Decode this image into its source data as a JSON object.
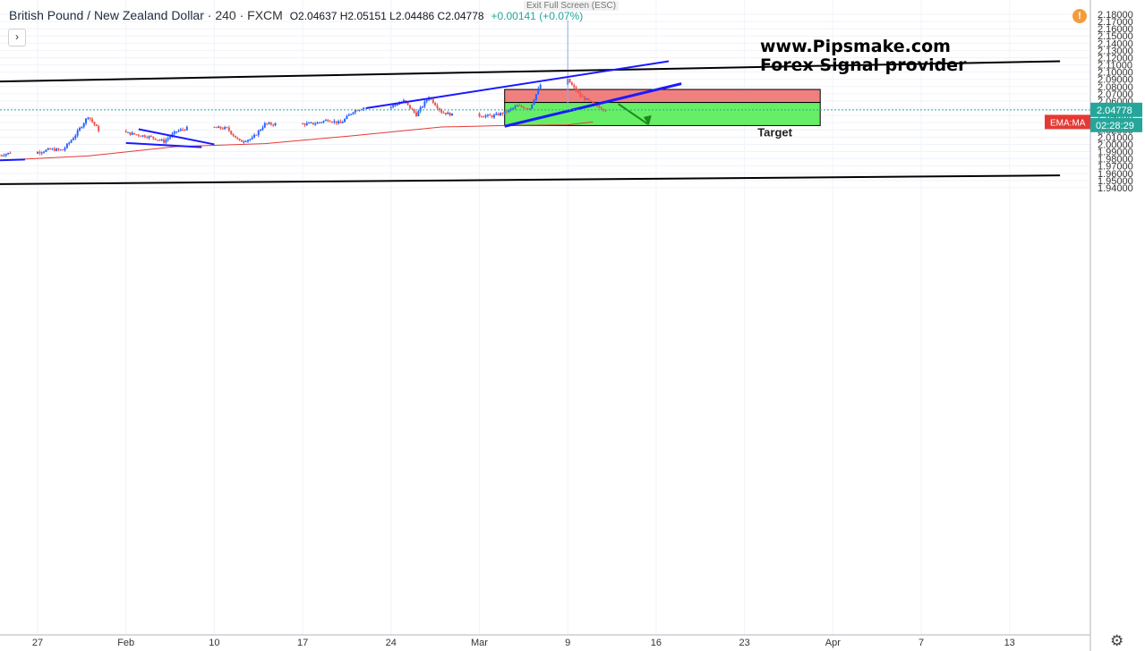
{
  "header": {
    "symbol": "British Pound / New Zealand Dollar",
    "separator": "·",
    "interval": "240",
    "exchange": "FXCM",
    "ohlc": "O2.04637 H2.05151 L2.04486 C2.04778",
    "change": "+0.00141 (+0.07%)"
  },
  "overlay": {
    "exit_fullscreen": "Exit Full Screen (ESC)",
    "expand_symbol": "›",
    "alert_symbol": "!"
  },
  "watermark": {
    "line1": "www.Pipsmake.com",
    "line2": "Forex Signal provider"
  },
  "price_axis": {
    "last_price": "2.04778",
    "countdown": "02:28:29",
    "indicator_label": "EMA:MA"
  },
  "annotations": {
    "target_label": "Target"
  },
  "icons": {
    "settings": "gear-icon",
    "alert": "alert-icon",
    "expand": "chevron-right-icon"
  },
  "colors": {
    "up_candle": "#2962ff",
    "down_candle": "#ef5350",
    "ema": "#e53935",
    "stop_zone": "#f08080",
    "target_zone": "#66ee66",
    "channel": "#000000",
    "trendline": "#1a1aff"
  },
  "chart_data": {
    "type": "candlestick",
    "title": "British Pound / New Zealand Dollar · 240 · FXCM",
    "yaxis": {
      "ylim": [
        1.935,
        2.182
      ],
      "ticks": [
        "1.94000",
        "1.95000",
        "1.96000",
        "1.97000",
        "1.98000",
        "1.99000",
        "2.00000",
        "2.01000",
        "2.02000",
        "2.03000",
        "2.04000",
        "2.05000",
        "2.06000",
        "2.07000",
        "2.08000",
        "2.09000",
        "2.10000",
        "2.11000",
        "2.12000",
        "2.13000",
        "2.14000",
        "2.15000",
        "2.16000",
        "2.17000",
        "2.18000"
      ]
    },
    "xaxis": {
      "ticks": [
        "27",
        "Feb",
        "10",
        "17",
        "24",
        "Mar",
        "9",
        "16",
        "23",
        "Apr",
        "7",
        "13"
      ],
      "tick_dates": [
        "2020-01-27",
        "2020-02-03",
        "2020-02-10",
        "2020-02-17",
        "2020-02-24",
        "2020-03-02",
        "2020-03-09",
        "2020-03-16",
        "2020-03-23",
        "2020-03-30",
        "2020-04-06",
        "2020-04-13"
      ]
    },
    "grid": true,
    "last_price": 2.04778,
    "series": [
      {
        "name": "EMA:MA",
        "type": "line",
        "points": [
          [
            "2020-01-24",
            1.978
          ],
          [
            "2020-01-31",
            1.984
          ],
          [
            "2020-02-07",
            1.997
          ],
          [
            "2020-02-14",
            2.001
          ],
          [
            "2020-02-21",
            2.012
          ],
          [
            "2020-02-28",
            2.024
          ],
          [
            "2020-03-04",
            2.026
          ],
          [
            "2020-03-09",
            2.027
          ],
          [
            "2020-03-11",
            2.031
          ]
        ]
      }
    ],
    "candles_daily_approx": [
      [
        "2020-01-24",
        1.985
      ],
      [
        "2020-01-27",
        1.989
      ],
      [
        "2020-01-28",
        1.993
      ],
      [
        "2020-01-29",
        1.992
      ],
      [
        "2020-01-30",
        2.013
      ],
      [
        "2020-01-31",
        2.039
      ],
      [
        "2020-02-03",
        2.016
      ],
      [
        "2020-02-04",
        2.013
      ],
      [
        "2020-02-05",
        2.01
      ],
      [
        "2020-02-06",
        2.004
      ],
      [
        "2020-02-07",
        2.018
      ],
      [
        "2020-02-10",
        2.023
      ],
      [
        "2020-02-11",
        2.022
      ],
      [
        "2020-02-12",
        2.004
      ],
      [
        "2020-02-13",
        2.008
      ],
      [
        "2020-02-14",
        2.028
      ],
      [
        "2020-02-17",
        2.028
      ],
      [
        "2020-02-18",
        2.029
      ],
      [
        "2020-02-19",
        2.034
      ],
      [
        "2020-02-20",
        2.029
      ],
      [
        "2020-02-21",
        2.046
      ],
      [
        "2020-02-24",
        2.052
      ],
      [
        "2020-02-25",
        2.06
      ],
      [
        "2020-02-26",
        2.041
      ],
      [
        "2020-02-27",
        2.066
      ],
      [
        "2020-02-28",
        2.045
      ],
      [
        "2020-03-02",
        2.04
      ],
      [
        "2020-03-03",
        2.039
      ],
      [
        "2020-03-04",
        2.044
      ],
      [
        "2020-03-05",
        2.053
      ],
      [
        "2020-03-06",
        2.05
      ],
      [
        "2020-03-09",
        2.089
      ],
      [
        "2020-03-10",
        2.067
      ],
      [
        "2020-03-11",
        2.056
      ],
      [
        "2020-03-12",
        2.04778
      ]
    ],
    "overlays": {
      "channel_upper": [
        [
          "2020-01-24",
          2.087
        ],
        [
          "2020-04-17",
          2.115
        ]
      ],
      "channel_lower": [
        [
          "2020-01-24",
          1.945
        ],
        [
          "2020-04-17",
          1.957
        ]
      ],
      "stop_zone": {
        "from": "2020-03-04",
        "to": "2020-03-29",
        "top": 2.076,
        "bottom": 2.058
      },
      "target_zone": {
        "from": "2020-03-04",
        "to": "2020-03-29",
        "top": 2.058,
        "bottom": 2.026
      },
      "target": 2.026
    }
  }
}
